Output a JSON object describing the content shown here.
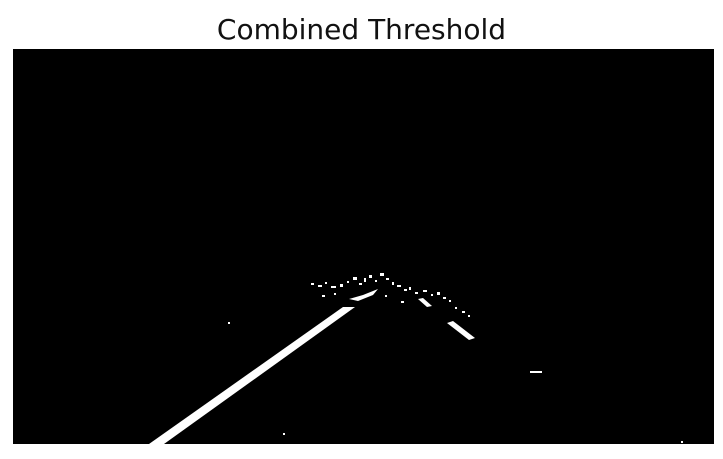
{
  "figure": {
    "title": "Combined Threshold"
  },
  "image": {
    "kind": "binary-threshold-mask",
    "background_color": "#000000",
    "foreground_color": "#ffffff"
  }
}
